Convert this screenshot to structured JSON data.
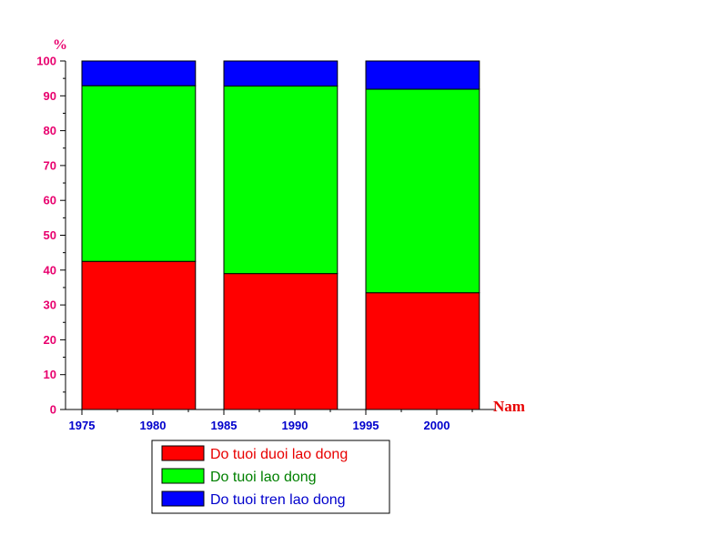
{
  "chart_data": {
    "type": "bar",
    "stacked": true,
    "percent_stacked": true,
    "categories": [
      "1979",
      "1989",
      "1999"
    ],
    "x_values": [
      1979,
      1989,
      1999
    ],
    "series": [
      {
        "name": "Do tuoi duoi lao dong",
        "values": [
          42.5,
          39.0,
          33.5
        ],
        "color": "#ff0000"
      },
      {
        "name": "Do tuoi lao dong",
        "values": [
          50.4,
          53.8,
          58.4
        ],
        "color": "#00ff00"
      },
      {
        "name": "Do tuoi tren lao dong",
        "values": [
          7.1,
          7.2,
          8.1
        ],
        "color": "#0000ff"
      }
    ],
    "ylabel": "%",
    "xlabel": "Nam",
    "ylim": [
      0,
      100
    ],
    "yticks": [
      "0",
      "10",
      "20",
      "30",
      "40",
      "50",
      "60",
      "70",
      "80",
      "90",
      "100"
    ],
    "xlim": [
      1975,
      2004
    ],
    "xticks": [
      "1975",
      "1980",
      "1985",
      "1990",
      "1995",
      "2000"
    ],
    "bar_width_years": 8,
    "grid": false,
    "legend_position": "bottom",
    "ytick_color": "#e8006e",
    "xtick_color": "#0000cc",
    "ylabel_color": "#e8006e",
    "xlabel_color": "#e80000",
    "legend_text_colors": [
      "#e80000",
      "#008000",
      "#0000cc"
    ]
  }
}
